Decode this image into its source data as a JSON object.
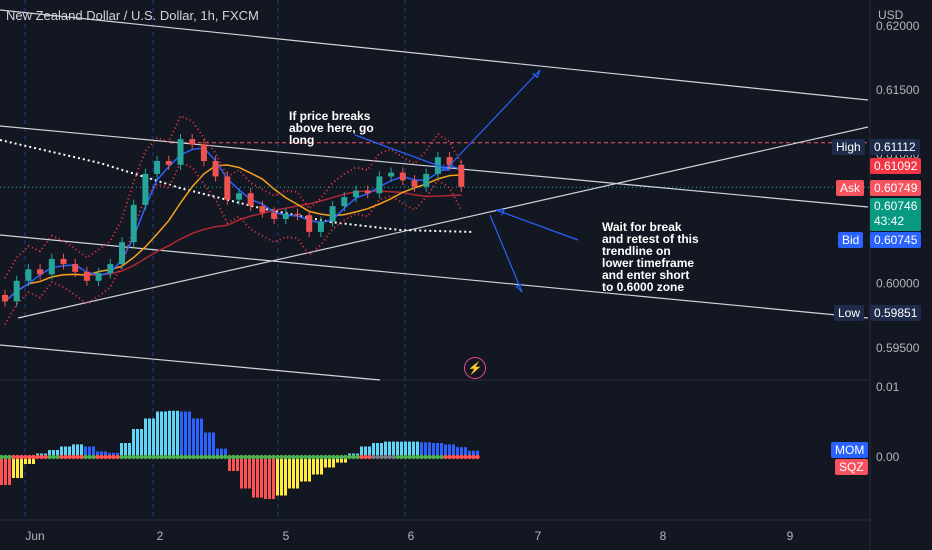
{
  "header": {
    "title": "New Zealand Dollar / U.S. Dollar, 1h, FXCM",
    "currency": "USD"
  },
  "annotations": {
    "long_idea": "If price breaks\nabove here, go\nlong",
    "short_idea": "Wait for break\nand retest of this\ntrendline on\nlower timeframe\nand enter short\nto 0.6000 zone"
  },
  "price_tags": {
    "high_label": "High",
    "high_value": "0.61112",
    "level_value": "0.61092",
    "ask_label": "Ask",
    "ask_value": "0.60749",
    "last_value": "0.60746",
    "countdown": "43:42",
    "bid_label": "Bid",
    "bid_value": "0.60745",
    "low_label": "Low",
    "low_value": "0.59851"
  },
  "indicator_tags": {
    "mom": "MOM",
    "sqz": "SQZ"
  },
  "colors": {
    "background": "#131722",
    "up": "#26a69a",
    "down": "#ef5350",
    "bb": "#f23645",
    "ma_fast": "#2962ff",
    "ma_slow": "#f7a21b",
    "ma_long": "#b22833",
    "trendline": "#d1d4dc",
    "arrow": "#2962ff",
    "level_line": "#f7525f",
    "mom_light_blue": "#5dd6f7",
    "mom_blue": "#2962ff",
    "mom_red": "#ff5252",
    "mom_yellow": "#ffeb3b",
    "sqz_green": "#4caf50",
    "sqz_red": "#ff5252"
  },
  "chart_data": {
    "type": "candlestick",
    "title": "New Zealand Dollar / U.S. Dollar, 1h, FXCM",
    "y_unit": "USD",
    "y_ticks": [
      0.595,
      0.6,
      0.605,
      0.61,
      0.615,
      0.62
    ],
    "x_ticks": [
      "Jun",
      "2",
      "5",
      "6",
      "7",
      "8",
      "9"
    ],
    "ylim": [
      0.5925,
      0.622
    ],
    "close": [
      0.5986,
      0.6002,
      0.6011,
      0.6007,
      0.6019,
      0.6015,
      0.6009,
      0.6002,
      0.6008,
      0.6015,
      0.6032,
      0.6061,
      0.6085,
      0.6095,
      0.6092,
      0.6112,
      0.6108,
      0.6095,
      0.6083,
      0.6065,
      0.607,
      0.606,
      0.6055,
      0.605,
      0.6054,
      0.6053,
      0.604,
      0.6048,
      0.606,
      0.6067,
      0.6072,
      0.607,
      0.6083,
      0.6086,
      0.608,
      0.6075,
      0.6085,
      0.6098,
      0.6092,
      0.6075
    ],
    "indicator": {
      "name": "Squeeze Momentum",
      "yticks": [
        0.01,
        0.0
      ],
      "momentum": [
        -0.004,
        -0.003,
        -0.001,
        0.0005,
        0.001,
        0.0015,
        0.0018,
        0.0015,
        0.0008,
        0.0006,
        0.002,
        0.004,
        0.0055,
        0.0065,
        0.0066,
        0.0065,
        0.0055,
        0.0035,
        0.0012,
        -0.002,
        -0.0045,
        -0.0058,
        -0.006,
        -0.0055,
        -0.0045,
        -0.0035,
        -0.0025,
        -0.0015,
        -0.0008,
        0.0005,
        0.0015,
        0.002,
        0.0022,
        0.0022,
        0.0022,
        0.0021,
        0.002,
        0.0018,
        0.0014,
        0.0009
      ],
      "squeeze": [
        "green",
        "red",
        "red",
        "red",
        "green",
        "red",
        "red",
        "green",
        "red",
        "red",
        "green",
        "green",
        "green",
        "green",
        "green",
        "green",
        "green",
        "green",
        "green",
        "green",
        "green",
        "green",
        "green",
        "green",
        "green",
        "green",
        "green",
        "green",
        "green",
        "green",
        "red",
        "gray",
        "gray",
        "green",
        "green",
        "green",
        "green",
        "red",
        "red",
        "red"
      ]
    },
    "levels": {
      "high": 0.61112,
      "level": 0.61092,
      "ask": 0.60749,
      "last": 0.60746,
      "bid": 0.60745,
      "low": 0.59851
    }
  }
}
